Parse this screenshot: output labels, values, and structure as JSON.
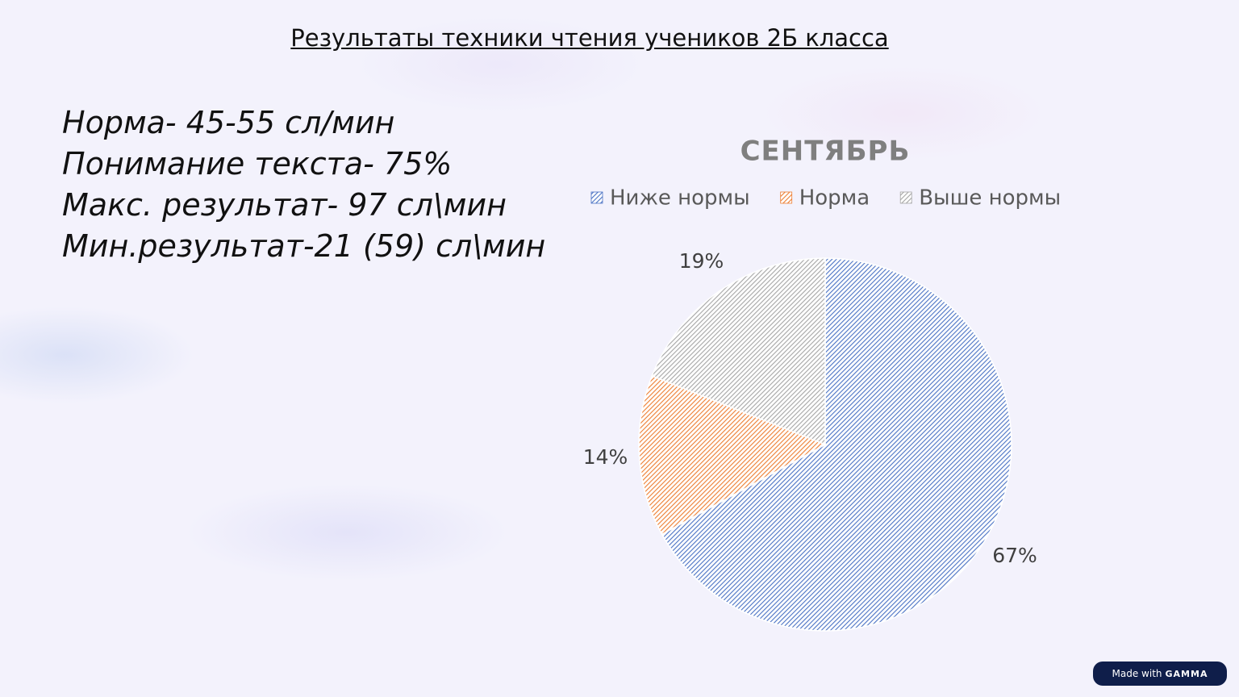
{
  "title": "Результаты техники чтения учеников 2Б класса",
  "notes": [
    "Норма- 45-55 сл/мин",
    "Понимание текста- 75%",
    "Макс. результат- 97 сл\\мин",
    "Мин.результат-21 (59)  сл\\мин"
  ],
  "chart_data": {
    "type": "pie",
    "title": "СЕНТЯБРЬ",
    "categories": [
      "Ниже нормы",
      "Норма",
      "Выше нормы"
    ],
    "values": [
      67,
      14,
      19
    ],
    "value_labels": [
      "67%",
      "14%",
      "19%"
    ],
    "colors": [
      "#4a72c4",
      "#ed7d31",
      "#a5a5a5"
    ],
    "legend": "top"
  },
  "badge": {
    "prefix": "Made with",
    "brand": "GAMMA"
  }
}
